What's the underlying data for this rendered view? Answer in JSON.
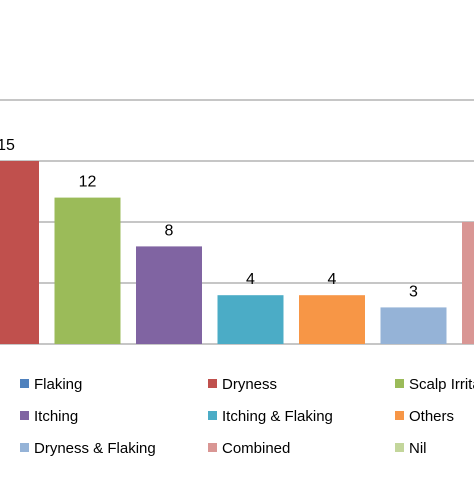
{
  "chart_data": {
    "type": "bar",
    "title": "",
    "xlabel": "",
    "ylabel": "",
    "ylim": [
      0,
      24
    ],
    "grid": true,
    "legend_position": "bottom",
    "categories": [
      "Dryness",
      "Scalp Irritation",
      "Itching",
      "Itching & Flaking",
      "Others",
      "Dryness & Flaking",
      "Combined"
    ],
    "values": [
      15,
      12,
      8,
      4,
      4,
      3,
      10
    ],
    "value_labels": [
      "15",
      "12",
      "8",
      "4",
      "4",
      "3",
      ""
    ],
    "colors": [
      "#C0504D",
      "#9BBB59",
      "#8064A2",
      "#4BACC6",
      "#F79646",
      "#95B3D7",
      "#D99694"
    ],
    "legend": [
      {
        "label": "Flaking",
        "color": "#4F81BD"
      },
      {
        "label": "Dryness",
        "color": "#C0504D"
      },
      {
        "label": "Scalp Irritation",
        "color": "#9BBB59"
      },
      {
        "label": "Itching",
        "color": "#8064A2"
      },
      {
        "label": "Itching & Flaking",
        "color": "#4BACC6"
      },
      {
        "label": "Others",
        "color": "#F79646"
      },
      {
        "label": "Dryness & Flaking",
        "color": "#95B3D7"
      },
      {
        "label": "Combined",
        "color": "#D99694"
      },
      {
        "label": "Nil",
        "color": "#C3D69B"
      }
    ]
  }
}
